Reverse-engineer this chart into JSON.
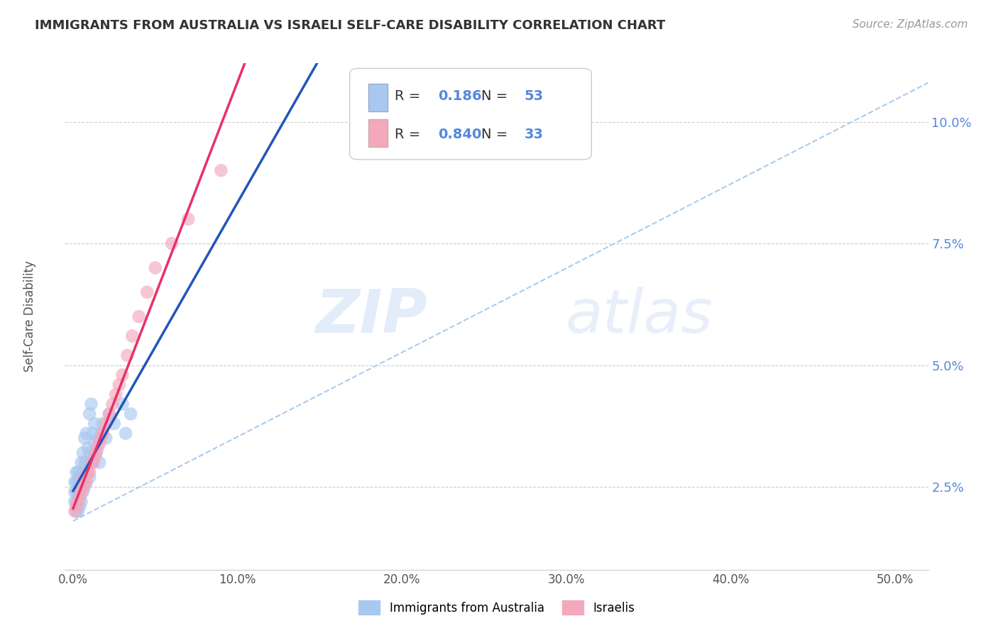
{
  "title": "IMMIGRANTS FROM AUSTRALIA VS ISRAELI SELF-CARE DISABILITY CORRELATION CHART",
  "source": "Source: ZipAtlas.com",
  "xlabel_bottom": [
    "Immigrants from Australia",
    "Israelis"
  ],
  "ylabel": "Self-Care Disability",
  "x_tick_vals": [
    0.0,
    0.1,
    0.2,
    0.3,
    0.4,
    0.5
  ],
  "x_tick_labels": [
    "0.0%",
    "10.0%",
    "20.0%",
    "30.0%",
    "40.0%",
    "50.0%"
  ],
  "y_tick_vals": [
    0.025,
    0.05,
    0.075,
    0.1
  ],
  "y_tick_labels": [
    "2.5%",
    "5.0%",
    "7.5%",
    "10.0%"
  ],
  "xlim": [
    -0.005,
    0.52
  ],
  "ylim": [
    0.008,
    0.112
  ],
  "australia_color": "#A8C8F0",
  "israeli_color": "#F4A8BC",
  "australia_line_color": "#2255BB",
  "israeli_line_color": "#E8306A",
  "dashed_line_color": "#AACCEE",
  "R_australia": 0.186,
  "N_australia": 53,
  "R_israeli": 0.84,
  "N_israeli": 33,
  "watermark_zip": "ZIP",
  "watermark_atlas": "atlas",
  "australia_points_x": [
    0.001,
    0.001,
    0.001,
    0.002,
    0.002,
    0.002,
    0.002,
    0.002,
    0.003,
    0.003,
    0.003,
    0.003,
    0.003,
    0.004,
    0.004,
    0.004,
    0.004,
    0.005,
    0.005,
    0.005,
    0.005,
    0.006,
    0.006,
    0.006,
    0.006,
    0.007,
    0.007,
    0.007,
    0.008,
    0.008,
    0.008,
    0.009,
    0.009,
    0.01,
    0.01,
    0.01,
    0.011,
    0.011,
    0.012,
    0.012,
    0.013,
    0.013,
    0.014,
    0.015,
    0.016,
    0.017,
    0.018,
    0.02,
    0.022,
    0.025,
    0.03,
    0.032,
    0.035
  ],
  "australia_points_y": [
    0.022,
    0.024,
    0.026,
    0.02,
    0.022,
    0.024,
    0.026,
    0.028,
    0.02,
    0.022,
    0.024,
    0.026,
    0.028,
    0.021,
    0.023,
    0.025,
    0.027,
    0.022,
    0.025,
    0.027,
    0.03,
    0.024,
    0.026,
    0.028,
    0.032,
    0.025,
    0.03,
    0.035,
    0.026,
    0.03,
    0.036,
    0.028,
    0.033,
    0.027,
    0.032,
    0.04,
    0.03,
    0.042,
    0.03,
    0.036,
    0.034,
    0.038,
    0.032,
    0.035,
    0.03,
    0.036,
    0.038,
    0.035,
    0.04,
    0.038,
    0.042,
    0.036,
    0.04
  ],
  "israeli_points_x": [
    0.001,
    0.002,
    0.003,
    0.004,
    0.005,
    0.006,
    0.006,
    0.007,
    0.008,
    0.009,
    0.01,
    0.011,
    0.012,
    0.013,
    0.014,
    0.015,
    0.016,
    0.017,
    0.018,
    0.02,
    0.022,
    0.024,
    0.026,
    0.028,
    0.03,
    0.033,
    0.036,
    0.04,
    0.045,
    0.05,
    0.06,
    0.07,
    0.09
  ],
  "israeli_points_y": [
    0.02,
    0.021,
    0.022,
    0.023,
    0.024,
    0.025,
    0.026,
    0.027,
    0.026,
    0.028,
    0.028,
    0.03,
    0.03,
    0.031,
    0.032,
    0.033,
    0.034,
    0.035,
    0.036,
    0.038,
    0.04,
    0.042,
    0.044,
    0.046,
    0.048,
    0.052,
    0.056,
    0.06,
    0.065,
    0.07,
    0.075,
    0.08,
    0.09
  ]
}
